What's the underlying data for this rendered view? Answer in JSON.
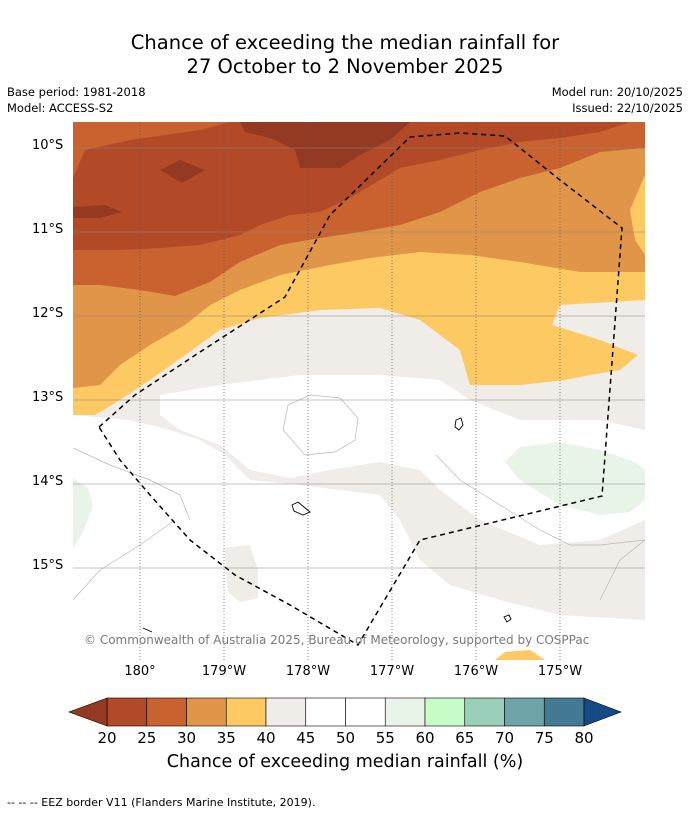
{
  "header": {
    "title_line1": "Chance of exceeding the median rainfall for",
    "title_line2": "27 October to 2 November 2025",
    "base_period": "Base period: 1981-2018",
    "model": "Model: ACCESS-S2",
    "model_run": "Model run: 20/10/2025",
    "issued": "Issued: 22/10/2025"
  },
  "map": {
    "lat_labels": [
      "10°S",
      "11°S",
      "12°S",
      "13°S",
      "14°S",
      "15°S"
    ],
    "lon_labels": [
      "180°",
      "179°W",
      "178°W",
      "177°W",
      "176°W",
      "175°W"
    ],
    "copyright": "© Commonwealth of Australia 2025, Bureau of Meteorology, supported by COSPPac",
    "colors": {
      "lt20": "#943a22",
      "c20_25": "#b24a28",
      "c25_30": "#c9622f",
      "c30_35": "#e09549",
      "c35_40": "#fdc963",
      "c40_45": "#f0ece7",
      "c45_55": "#ffffff",
      "c55_60": "#e9f4e9",
      "eez_border": "#000000"
    }
  },
  "colorbar": {
    "labels": [
      "20",
      "25",
      "30",
      "35",
      "40",
      "45",
      "50",
      "55",
      "60",
      "65",
      "70",
      "75",
      "80"
    ],
    "colors": [
      "#943a22",
      "#b24a28",
      "#c9622f",
      "#e09549",
      "#fdc963",
      "#f0ece7",
      "#ffffff",
      "#ffffff",
      "#e9f4e9",
      "#c7fcc7",
      "#9acfb9",
      "#6ea3a8",
      "#447994",
      "#154b85"
    ],
    "title": "Chance of exceeding median rainfall (%)"
  },
  "footnote": "--  --  -- EEZ border V11 (Flanders Marine Institute, 2019)."
}
